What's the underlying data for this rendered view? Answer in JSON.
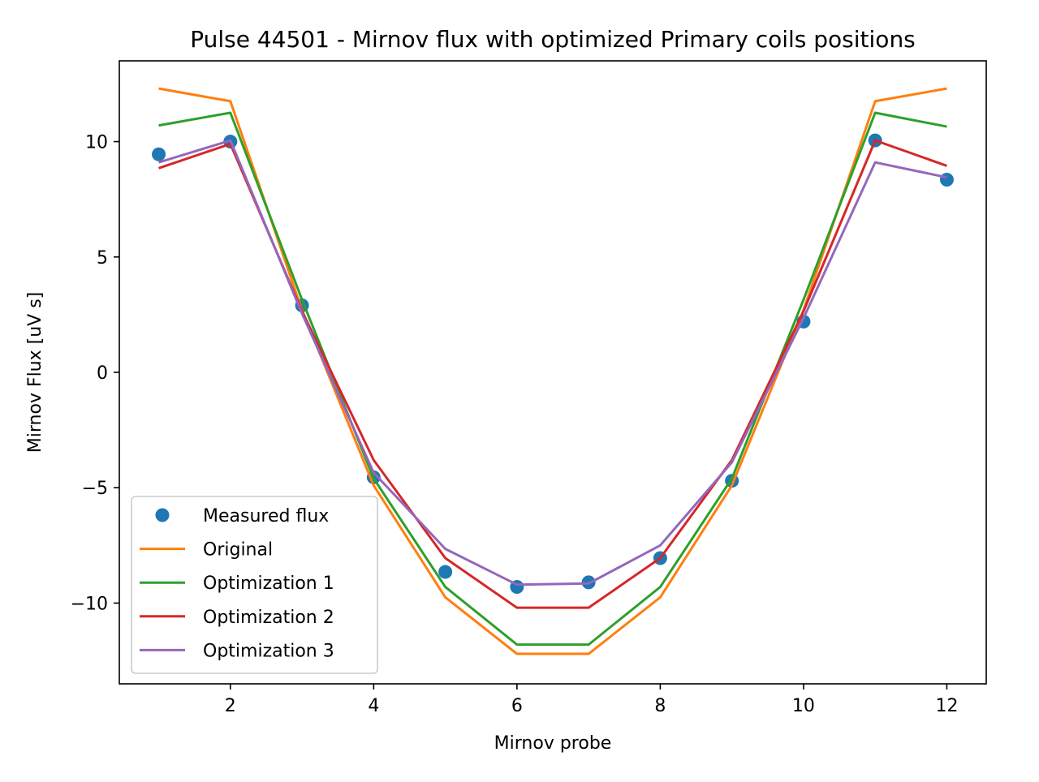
{
  "chart_data": {
    "type": "line",
    "title": "Pulse 44501 - Mirnov flux with optimized Primary coils positions",
    "xlabel": "Mirnov probe",
    "ylabel": "Mirnov Flux [uV s]",
    "xlim": [
      0.45,
      12.55
    ],
    "ylim": [
      -13.5,
      13.5
    ],
    "xticks": [
      2,
      4,
      6,
      8,
      10,
      12
    ],
    "xtick_labels": [
      "2",
      "4",
      "6",
      "8",
      "10",
      "12"
    ],
    "yticks": [
      -10,
      -5,
      0,
      5,
      10
    ],
    "ytick_labels": [
      "−10",
      "−5",
      "0",
      "5",
      "10"
    ],
    "grid": false,
    "legend_position": "lower-left",
    "x": [
      1,
      2,
      3,
      4,
      5,
      6,
      7,
      8,
      9,
      10,
      11,
      12
    ],
    "series": [
      {
        "name": "Measured flux",
        "style": "markers",
        "color": "#1f77b4",
        "values": [
          9.45,
          10.0,
          2.9,
          -4.55,
          -8.65,
          -9.3,
          -9.1,
          -8.05,
          -4.7,
          2.2,
          10.05,
          8.35
        ]
      },
      {
        "name": "Original",
        "style": "line",
        "color": "#ff7f0e",
        "values": [
          12.3,
          11.75,
          2.7,
          -4.9,
          -9.75,
          -12.2,
          -12.2,
          -9.75,
          -4.9,
          2.7,
          11.75,
          12.3
        ]
      },
      {
        "name": "Optimization 1",
        "style": "line",
        "color": "#2ca02c",
        "values": [
          10.7,
          11.25,
          3.15,
          -4.6,
          -9.3,
          -11.8,
          -11.8,
          -9.3,
          -4.6,
          3.15,
          11.25,
          10.65
        ]
      },
      {
        "name": "Optimization 2",
        "style": "line",
        "color": "#d62728",
        "values": [
          8.85,
          9.9,
          2.65,
          -3.8,
          -8.05,
          -10.2,
          -10.2,
          -8.05,
          -3.8,
          2.65,
          10.05,
          8.95
        ]
      },
      {
        "name": "Optimization 3",
        "style": "line",
        "color": "#9467bd",
        "values": [
          9.1,
          10.05,
          2.55,
          -4.35,
          -7.65,
          -9.2,
          -9.15,
          -7.5,
          -3.9,
          2.35,
          9.1,
          8.45
        ]
      }
    ]
  }
}
